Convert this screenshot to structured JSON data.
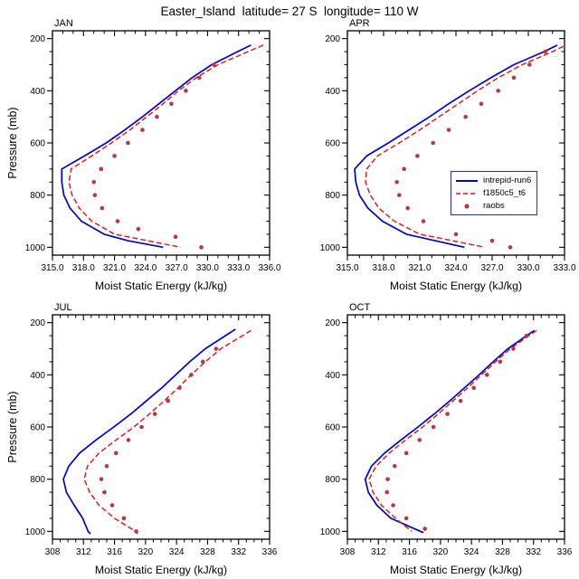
{
  "title": "Easter_Island  latitude= 27 S  longitude= 110 W",
  "legend": {
    "border_color": "#2a2ac8",
    "entries": [
      {
        "label": "intrepid-run6",
        "style": "solid",
        "color": "#0000cc"
      },
      {
        "label": "f1850c5_t6",
        "style": "dashed",
        "color": "#e01010"
      },
      {
        "label": "raobs",
        "style": "dots",
        "color": "#b03a4a"
      }
    ]
  },
  "colors": {
    "model_line": "#0000cc",
    "control_line": "#e01010",
    "raobs_dots": "#b03a4a",
    "axis": "#000000",
    "background": "#ffffff"
  },
  "chart_data": [
    {
      "type": "line",
      "title": "JAN",
      "xlabel": "Moist Static Energy (kJ/kg)",
      "ylabel": "Pressure (mb)",
      "xlim": [
        315,
        336
      ],
      "xticks": [
        315,
        318,
        321,
        324,
        327,
        330,
        333,
        336
      ],
      "xtick_labels": [
        "315.0",
        "318.0",
        "321.0",
        "324.0",
        "327.0",
        "330.0",
        "333.0",
        "336.0"
      ],
      "xminor": 1,
      "ylim": [
        170,
        1030
      ],
      "yticks": [
        200,
        400,
        600,
        800,
        1000
      ],
      "yminor": 50,
      "series": [
        {
          "name": "intrepid-run6",
          "style": "solid",
          "color": "#0000cc",
          "points": [
            [
              225,
              334.2
            ],
            [
              250,
              332.9
            ],
            [
              300,
              330.4
            ],
            [
              350,
              328.5
            ],
            [
              400,
              326.9
            ],
            [
              450,
              325.3
            ],
            [
              500,
              323.7
            ],
            [
              550,
              322.0
            ],
            [
              600,
              320.2
            ],
            [
              650,
              318.1
            ],
            [
              700,
              315.9
            ],
            [
              750,
              315.9
            ],
            [
              800,
              316.1
            ],
            [
              850,
              316.7
            ],
            [
              900,
              317.8
            ],
            [
              950,
              320.0
            ],
            [
              975,
              322.3
            ],
            [
              1000,
              325.7
            ]
          ]
        },
        {
          "name": "f1850c5_t6",
          "style": "dashed",
          "color": "#e01010",
          "points": [
            [
              225,
              335.4
            ],
            [
              250,
              333.9
            ],
            [
              300,
              331.0
            ],
            [
              350,
              328.9
            ],
            [
              400,
              327.2
            ],
            [
              450,
              325.7
            ],
            [
              500,
              324.1
            ],
            [
              550,
              322.5
            ],
            [
              600,
              320.7
            ],
            [
              650,
              318.8
            ],
            [
              700,
              316.8
            ],
            [
              750,
              316.6
            ],
            [
              800,
              316.9
            ],
            [
              850,
              317.6
            ],
            [
              900,
              318.8
            ],
            [
              950,
              321.0
            ],
            [
              1000,
              327.4
            ]
          ]
        },
        {
          "name": "raobs",
          "style": "dots",
          "color": "#b03a4a",
          "points": [
            [
              300,
              330.6
            ],
            [
              350,
              329.2
            ],
            [
              400,
              327.9
            ],
            [
              450,
              326.5
            ],
            [
              500,
              325.1
            ],
            [
              550,
              323.7
            ],
            [
              600,
              322.3
            ],
            [
              650,
              321.0
            ],
            [
              700,
              319.7
            ],
            [
              750,
              319.0
            ],
            [
              800,
              319.1
            ],
            [
              850,
              319.8
            ],
            [
              900,
              321.3
            ],
            [
              930,
              323.3
            ],
            [
              960,
              326.9
            ],
            [
              1000,
              329.4
            ]
          ]
        }
      ]
    },
    {
      "type": "line",
      "title": "APR",
      "xlabel": "Moist Static Energy (kJ/kg)",
      "ylabel": "Pressure (mb)",
      "xlim": [
        315,
        333
      ],
      "xticks": [
        315,
        318,
        321,
        324,
        327,
        330,
        333
      ],
      "xtick_labels": [
        "315.0",
        "318.0",
        "321.0",
        "324.0",
        "327.0",
        "330.0",
        "333.0"
      ],
      "xminor": 1,
      "ylim": [
        170,
        1030
      ],
      "yticks": [
        200,
        400,
        600,
        800,
        1000
      ],
      "yminor": 50,
      "series": [
        {
          "name": "intrepid-run6",
          "style": "solid",
          "color": "#0000cc",
          "points": [
            [
              225,
              332.4
            ],
            [
              250,
              331.3
            ],
            [
              300,
              328.8
            ],
            [
              350,
              326.9
            ],
            [
              400,
              325.1
            ],
            [
              450,
              323.4
            ],
            [
              500,
              321.8
            ],
            [
              550,
              320.1
            ],
            [
              600,
              318.4
            ],
            [
              650,
              316.6
            ],
            [
              700,
              315.6
            ],
            [
              750,
              315.7
            ],
            [
              800,
              316.0
            ],
            [
              850,
              316.7
            ],
            [
              900,
              317.9
            ],
            [
              950,
              319.9
            ],
            [
              1000,
              324.7
            ]
          ]
        },
        {
          "name": "f1850c5_t6",
          "style": "dashed",
          "color": "#e01010",
          "points": [
            [
              230,
              332.9
            ],
            [
              250,
              332.0
            ],
            [
              300,
              329.5
            ],
            [
              350,
              327.5
            ],
            [
              400,
              325.8
            ],
            [
              450,
              324.2
            ],
            [
              500,
              322.6
            ],
            [
              550,
              321.0
            ],
            [
              600,
              319.3
            ],
            [
              650,
              317.5
            ],
            [
              700,
              316.6
            ],
            [
              750,
              316.5
            ],
            [
              800,
              316.9
            ],
            [
              850,
              317.6
            ],
            [
              900,
              318.9
            ],
            [
              950,
              321.0
            ],
            [
              1000,
              326.4
            ]
          ]
        },
        {
          "name": "raobs",
          "style": "dots",
          "color": "#b03a4a",
          "points": [
            [
              250,
              331.4
            ],
            [
              300,
              330.1
            ],
            [
              350,
              328.8
            ],
            [
              400,
              327.5
            ],
            [
              450,
              326.1
            ],
            [
              500,
              324.8
            ],
            [
              550,
              323.4
            ],
            [
              600,
              322.1
            ],
            [
              650,
              320.8
            ],
            [
              700,
              319.7
            ],
            [
              750,
              319.1
            ],
            [
              800,
              319.3
            ],
            [
              850,
              320.0
            ],
            [
              900,
              321.3
            ],
            [
              950,
              324.0
            ],
            [
              975,
              327.0
            ],
            [
              1000,
              328.5
            ]
          ]
        }
      ]
    },
    {
      "type": "line",
      "title": "JUL",
      "xlabel": "Moist Static Energy (kJ/kg)",
      "ylabel": "Pressure (mb)",
      "xlim": [
        308,
        336
      ],
      "xticks": [
        308,
        312,
        316,
        320,
        324,
        328,
        332,
        336
      ],
      "xtick_labels": [
        "308",
        "312",
        "316",
        "320",
        "324",
        "328",
        "332",
        "336"
      ],
      "xminor": 1,
      "ylim": [
        170,
        1030
      ],
      "yticks": [
        200,
        400,
        600,
        800,
        1000
      ],
      "yminor": 50,
      "series": [
        {
          "name": "intrepid-run6",
          "style": "solid",
          "color": "#0000cc",
          "points": [
            [
              225,
              331.6
            ],
            [
              250,
              330.3
            ],
            [
              300,
              327.7
            ],
            [
              350,
              325.7
            ],
            [
              400,
              323.9
            ],
            [
              450,
              322.1
            ],
            [
              500,
              320.1
            ],
            [
              550,
              318.1
            ],
            [
              600,
              315.9
            ],
            [
              650,
              313.6
            ],
            [
              700,
              311.5
            ],
            [
              750,
              310.1
            ],
            [
              800,
              309.4
            ],
            [
              850,
              309.8
            ],
            [
              900,
              310.8
            ],
            [
              950,
              311.9
            ],
            [
              1000,
              312.6
            ],
            [
              1010,
              312.9
            ]
          ]
        },
        {
          "name": "f1850c5_t6",
          "style": "dashed",
          "color": "#e01010",
          "points": [
            [
              230,
              333.6
            ],
            [
              250,
              332.5
            ],
            [
              300,
              329.7
            ],
            [
              350,
              327.7
            ],
            [
              400,
              325.9
            ],
            [
              450,
              324.2
            ],
            [
              500,
              322.4
            ],
            [
              550,
              320.5
            ],
            [
              600,
              318.5
            ],
            [
              650,
              316.2
            ],
            [
              700,
              314.0
            ],
            [
              750,
              312.5
            ],
            [
              800,
              312.1
            ],
            [
              850,
              312.8
            ],
            [
              900,
              314.0
            ],
            [
              950,
              316.0
            ],
            [
              1000,
              318.7
            ],
            [
              1010,
              319.0
            ]
          ]
        },
        {
          "name": "raobs",
          "style": "dots",
          "color": "#b03a4a",
          "points": [
            [
              300,
              329.1
            ],
            [
              350,
              327.4
            ],
            [
              400,
              325.9
            ],
            [
              450,
              324.4
            ],
            [
              500,
              322.9
            ],
            [
              550,
              321.2
            ],
            [
              600,
              319.5
            ],
            [
              650,
              317.8
            ],
            [
              700,
              316.2
            ],
            [
              750,
              315.0
            ],
            [
              800,
              314.3
            ],
            [
              850,
              314.7
            ],
            [
              900,
              315.7
            ],
            [
              950,
              317.2
            ],
            [
              1000,
              318.8
            ]
          ]
        }
      ]
    },
    {
      "type": "line",
      "title": "OCT",
      "xlabel": "Moist Static Energy (kJ/kg)",
      "ylabel": "Pressure (mb)",
      "xlim": [
        308,
        336
      ],
      "xticks": [
        308,
        312,
        316,
        320,
        324,
        328,
        332,
        336
      ],
      "xtick_labels": [
        "308",
        "312",
        "316",
        "320",
        "324",
        "328",
        "332",
        "336"
      ],
      "xminor": 1,
      "ylim": [
        170,
        1030
      ],
      "yticks": [
        200,
        400,
        600,
        800,
        1000
      ],
      "yminor": 50,
      "series": [
        {
          "name": "intrepid-run6",
          "style": "solid",
          "color": "#0000cc",
          "points": [
            [
              230,
              332.1
            ],
            [
              250,
              331.1
            ],
            [
              300,
              328.7
            ],
            [
              350,
              326.8
            ],
            [
              400,
              325.0
            ],
            [
              450,
              323.1
            ],
            [
              500,
              321.2
            ],
            [
              550,
              319.2
            ],
            [
              600,
              317.1
            ],
            [
              650,
              314.9
            ],
            [
              700,
              312.8
            ],
            [
              750,
              311.1
            ],
            [
              800,
              310.3
            ],
            [
              850,
              310.7
            ],
            [
              900,
              311.8
            ],
            [
              950,
              313.6
            ],
            [
              1000,
              317.4
            ],
            [
              1005,
              317.8
            ]
          ]
        },
        {
          "name": "f1850c5_t6",
          "style": "dashed",
          "color": "#e01010",
          "points": [
            [
              230,
              332.4
            ],
            [
              250,
              331.4
            ],
            [
              300,
              329.0
            ],
            [
              350,
              327.1
            ],
            [
              400,
              325.3
            ],
            [
              450,
              323.5
            ],
            [
              500,
              321.6
            ],
            [
              550,
              319.7
            ],
            [
              600,
              317.7
            ],
            [
              650,
              315.5
            ],
            [
              700,
              313.4
            ],
            [
              750,
              311.7
            ],
            [
              800,
              310.8
            ],
            [
              850,
              311.3
            ],
            [
              900,
              312.4
            ],
            [
              950,
              314.2
            ],
            [
              1000,
              316.3
            ]
          ]
        },
        {
          "name": "raobs",
          "style": "dots",
          "color": "#b03a4a",
          "points": [
            [
              250,
              331.1
            ],
            [
              300,
              329.4
            ],
            [
              350,
              327.7
            ],
            [
              400,
              326.0
            ],
            [
              450,
              324.3
            ],
            [
              500,
              322.6
            ],
            [
              550,
              320.9
            ],
            [
              600,
              319.1
            ],
            [
              650,
              317.3
            ],
            [
              700,
              315.6
            ],
            [
              750,
              314.1
            ],
            [
              800,
              313.2
            ],
            [
              850,
              313.1
            ],
            [
              900,
              313.9
            ],
            [
              950,
              315.6
            ],
            [
              990,
              318.0
            ]
          ]
        }
      ]
    }
  ]
}
